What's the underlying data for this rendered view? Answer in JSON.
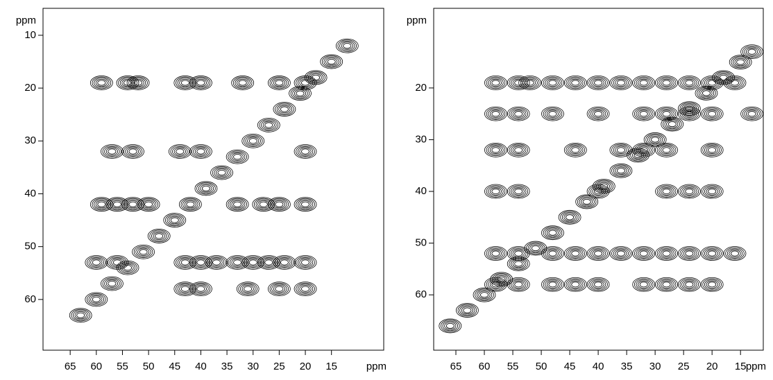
{
  "chart_data": [
    {
      "type": "contour",
      "xlabel": "ppm",
      "ylabel": "ppm",
      "color": "#000000",
      "xlim": [
        70.2,
        5
      ],
      "ylim": [
        4.9,
        69.6
      ],
      "xticks": [
        65,
        60,
        55,
        50,
        45,
        40,
        35,
        30,
        25,
        20,
        15
      ],
      "yticks": [
        10,
        20,
        30,
        40,
        50,
        60
      ],
      "x": [
        59,
        54,
        52,
        43,
        40,
        32,
        25,
        20,
        57,
        53,
        44,
        40,
        20,
        59,
        56,
        53,
        50,
        33,
        28,
        25,
        20,
        60,
        56,
        43,
        40,
        37,
        33,
        30,
        27,
        24,
        20,
        43,
        40,
        31,
        25,
        20,
        63,
        60,
        57,
        54,
        51,
        48,
        45,
        42,
        39,
        36,
        33,
        30,
        27,
        24,
        21,
        18,
        15,
        12
      ],
      "y": [
        19,
        19,
        19,
        19,
        19,
        19,
        19,
        19,
        32,
        32,
        32,
        32,
        32,
        42,
        42,
        42,
        42,
        42,
        42,
        42,
        42,
        53,
        53,
        53,
        53,
        53,
        53,
        53,
        53,
        53,
        53,
        58,
        58,
        58,
        58,
        58,
        63,
        60,
        57,
        54,
        51,
        48,
        45,
        42,
        39,
        36,
        33,
        30,
        27,
        24,
        21,
        18,
        15,
        12
      ]
    },
    {
      "type": "contour",
      "xlabel": "ppm",
      "ylabel": "ppm",
      "color": "#000000",
      "xlim": [
        68.9,
        11
      ],
      "ylim": [
        4.6,
        70.7
      ],
      "xticks": [
        65,
        60,
        55,
        50,
        45,
        40,
        35,
        30,
        25,
        20,
        15
      ],
      "yticks": [
        20,
        30,
        40,
        50,
        60
      ],
      "x": [
        58,
        54,
        52,
        48,
        44,
        40,
        36,
        32,
        28,
        24,
        20,
        16,
        58,
        54,
        48,
        40,
        32,
        28,
        24,
        20,
        13,
        58,
        54,
        44,
        36,
        32,
        28,
        20,
        58,
        54,
        40,
        28,
        24,
        20,
        58,
        54,
        48,
        44,
        40,
        36,
        32,
        28,
        24,
        20,
        16,
        58,
        54,
        48,
        44,
        40,
        32,
        28,
        24,
        20,
        66,
        63,
        60,
        57,
        54,
        51,
        48,
        45,
        42,
        39,
        36,
        33,
        30,
        27,
        24,
        21,
        18,
        15,
        13
      ],
      "y": [
        19,
        19,
        19,
        19,
        19,
        19,
        19,
        19,
        19,
        19,
        19,
        19,
        25,
        25,
        25,
        25,
        25,
        25,
        25,
        25,
        25,
        32,
        32,
        32,
        32,
        32,
        32,
        32,
        40,
        40,
        40,
        40,
        40,
        40,
        52,
        52,
        52,
        52,
        52,
        52,
        52,
        52,
        52,
        52,
        52,
        58,
        58,
        58,
        58,
        58,
        58,
        58,
        58,
        58,
        66,
        63,
        60,
        57,
        54,
        51,
        48,
        45,
        42,
        39,
        36,
        33,
        30,
        27,
        24,
        21,
        18,
        15,
        13
      ]
    }
  ]
}
